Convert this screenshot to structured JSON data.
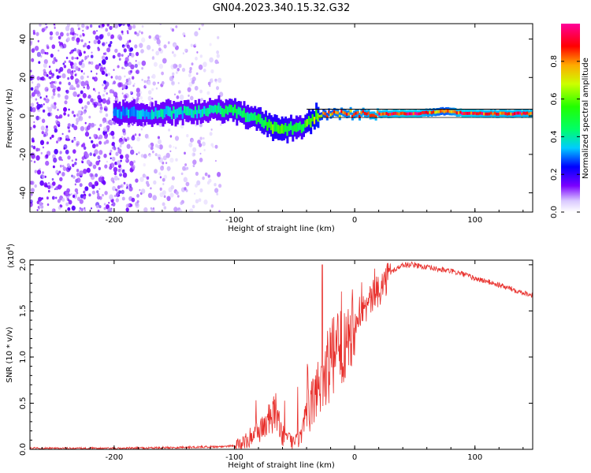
{
  "title": "GN04.2023.340.15.32.G32",
  "chart_data": [
    {
      "type": "heatmap",
      "xlabel": "Height of straight line (km)",
      "ylabel": "Frequency (Hz)",
      "xlim": [
        -270,
        148
      ],
      "ylim": [
        -50,
        48
      ],
      "xticks": [
        -200,
        -100,
        0,
        100
      ],
      "yticks": [
        -40,
        -20,
        0,
        20,
        40
      ],
      "colorbar": {
        "label": "Normalized spectral amplitude",
        "range": [
          0.0,
          1.0
        ],
        "ticks": [
          0.0,
          0.2,
          0.4,
          0.6,
          0.8
        ]
      },
      "ridge": {
        "x": [
          -190,
          -160,
          -130,
          -112,
          -100,
          -88,
          -78,
          -68,
          -60,
          -52,
          -45,
          -40,
          -33,
          -25,
          -15,
          0,
          20,
          50,
          75,
          90,
          110,
          148
        ],
        "y": [
          1.5,
          1.5,
          2.0,
          3.0,
          2.5,
          0,
          -3,
          -6,
          -8,
          -6,
          -6,
          -4,
          -1,
          0.5,
          1.0,
          1.2,
          1.0,
          1.2,
          2.5,
          1.5,
          1.2,
          1.2
        ],
        "level": [
          0.35,
          0.4,
          0.4,
          0.45,
          0.5,
          0.5,
          0.55,
          0.6,
          0.6,
          0.55,
          0.5,
          0.6,
          0.7,
          0.8,
          0.85,
          0.9,
          0.95,
          1.0,
          0.8,
          1.0,
          0.95,
          0.95
        ]
      },
      "noise_region_x": [
        -270,
        -110
      ]
    },
    {
      "type": "line",
      "xlabel": "Height of straight line (km)",
      "ylabel": "SNR (10 * v/v)",
      "yscale_label": "(x10",
      "yscale_exp": "4",
      "xlim": [
        -270,
        148
      ],
      "ylim": [
        0,
        2.05
      ],
      "xticks": [
        -200,
        -100,
        0,
        100
      ],
      "yticks": [
        "0.0",
        "0.5",
        "1.0",
        "1.5",
        "2.0"
      ],
      "series": [
        {
          "color": "#e8302c",
          "x": [
            -270,
            -200,
            -150,
            -110,
            -95,
            -88,
            -80,
            -72,
            -65,
            -60,
            -55,
            -50,
            -45,
            -40,
            -35,
            -30,
            -25,
            -20,
            -15,
            -10,
            -5,
            0,
            5,
            10,
            15,
            20,
            25,
            30,
            40,
            50,
            60,
            70,
            80,
            90,
            100,
            110,
            120,
            130,
            140,
            148
          ],
          "y": [
            0.01,
            0.01,
            0.02,
            0.03,
            0.05,
            0.12,
            0.2,
            0.3,
            0.4,
            0.15,
            0.1,
            0.08,
            0.12,
            0.35,
            0.5,
            0.7,
            0.85,
            0.95,
            1.05,
            1.15,
            1.3,
            1.4,
            1.5,
            1.55,
            1.65,
            1.72,
            1.82,
            1.92,
            2.0,
            2.0,
            1.97,
            1.95,
            1.93,
            1.9,
            1.85,
            1.82,
            1.78,
            1.74,
            1.7,
            1.67
          ]
        }
      ]
    }
  ]
}
